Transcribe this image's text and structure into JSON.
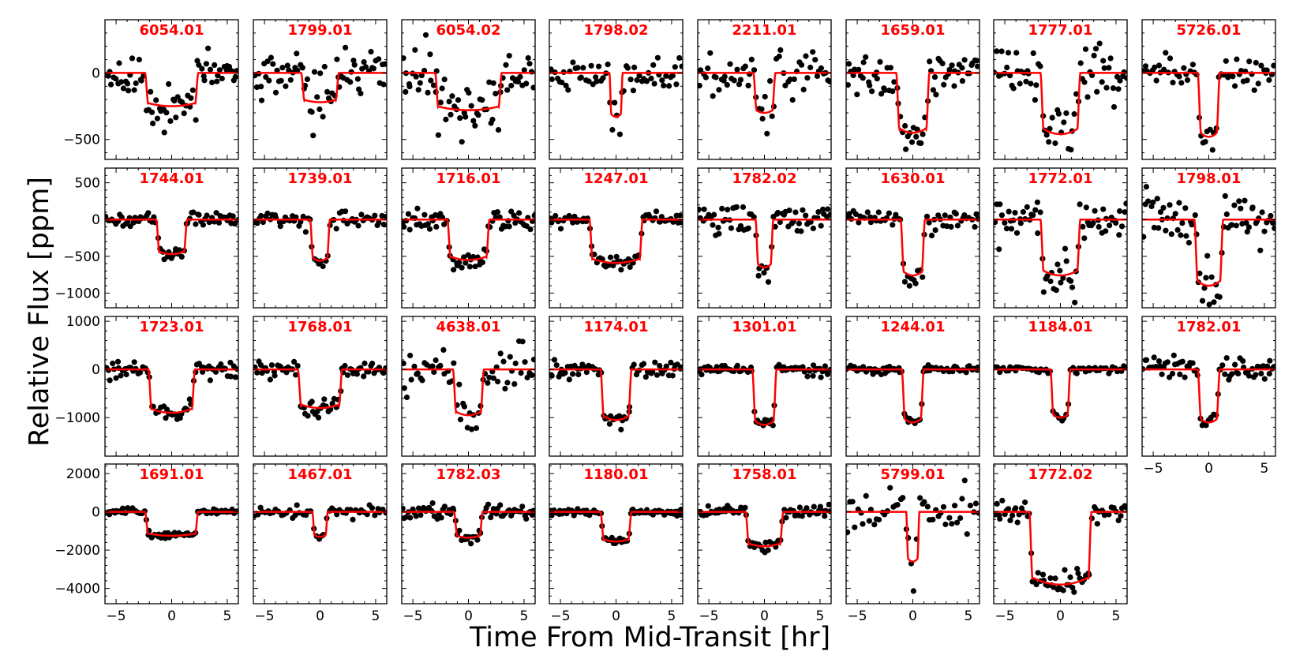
{
  "figure": {
    "xlabel": "Time From Mid-Transit [hr]",
    "ylabel": "Relative Flux [ppm]"
  },
  "chart_data": {
    "type": "scatter",
    "subtype": "transit light curve grid",
    "xlabel": "Time From Mid-Transit [hr]",
    "ylabel": "Relative Flux [ppm]",
    "xlim": [
      -6,
      6
    ],
    "xticks": [
      -5,
      0,
      5
    ],
    "marker_color": "#000000",
    "model_color": "#ff0000",
    "title_color": "#ff0000",
    "rows": [
      {
        "ylim": [
          -650,
          400
        ],
        "yticks": [
          0,
          -500
        ]
      },
      {
        "ylim": [
          -1200,
          700
        ],
        "yticks": [
          500,
          0,
          -500,
          -1000
        ]
      },
      {
        "ylim": [
          -1800,
          1100
        ],
        "yticks": [
          1000,
          0,
          -1000
        ]
      },
      {
        "ylim": [
          -4800,
          2500
        ],
        "yticks": [
          2000,
          0,
          -2000,
          -4000
        ]
      }
    ],
    "panels": [
      {
        "name": "6054.01",
        "row": 0,
        "col": 0,
        "depth": 250,
        "duration": 4.8,
        "scatter": 80,
        "n": 70
      },
      {
        "name": "1799.01",
        "row": 0,
        "col": 1,
        "depth": 220,
        "duration": 3.4,
        "scatter": 110,
        "n": 70
      },
      {
        "name": "6054.02",
        "row": 0,
        "col": 2,
        "depth": 280,
        "duration": 6.0,
        "scatter": 110,
        "n": 70
      },
      {
        "name": "1798.02",
        "row": 0,
        "col": 3,
        "depth": 330,
        "duration": 1.2,
        "scatter": 70,
        "n": 60
      },
      {
        "name": "2211.01",
        "row": 0,
        "col": 4,
        "depth": 300,
        "duration": 2.0,
        "scatter": 80,
        "n": 60
      },
      {
        "name": "1659.01",
        "row": 0,
        "col": 5,
        "depth": 450,
        "duration": 3.0,
        "scatter": 70,
        "n": 70
      },
      {
        "name": "1777.01",
        "row": 0,
        "col": 6,
        "depth": 460,
        "duration": 3.6,
        "scatter": 120,
        "n": 70
      },
      {
        "name": "5726.01",
        "row": 0,
        "col": 7,
        "depth": 480,
        "duration": 2.0,
        "scatter": 60,
        "n": 60
      },
      {
        "name": "1744.01",
        "row": 1,
        "col": 0,
        "depth": 470,
        "duration": 2.8,
        "scatter": 50,
        "n": 70
      },
      {
        "name": "1739.01",
        "row": 1,
        "col": 1,
        "depth": 560,
        "duration": 1.8,
        "scatter": 50,
        "n": 60
      },
      {
        "name": "1716.01",
        "row": 1,
        "col": 2,
        "depth": 550,
        "duration": 3.8,
        "scatter": 70,
        "n": 70
      },
      {
        "name": "1247.01",
        "row": 1,
        "col": 3,
        "depth": 590,
        "duration": 4.8,
        "scatter": 40,
        "n": 75
      },
      {
        "name": "1782.02",
        "row": 1,
        "col": 4,
        "depth": 650,
        "duration": 1.6,
        "scatter": 100,
        "n": 70
      },
      {
        "name": "1630.01",
        "row": 1,
        "col": 5,
        "depth": 760,
        "duration": 2.2,
        "scatter": 80,
        "n": 60
      },
      {
        "name": "1772.01",
        "row": 1,
        "col": 6,
        "depth": 760,
        "duration": 3.6,
        "scatter": 140,
        "n": 70
      },
      {
        "name": "1798.01",
        "row": 1,
        "col": 7,
        "depth": 900,
        "duration": 2.6,
        "scatter": 170,
        "n": 70
      },
      {
        "name": "1723.01",
        "row": 2,
        "col": 0,
        "depth": 900,
        "duration": 4.2,
        "scatter": 90,
        "n": 70
      },
      {
        "name": "1768.01",
        "row": 2,
        "col": 1,
        "depth": 800,
        "duration": 4.0,
        "scatter": 70,
        "n": 70
      },
      {
        "name": "4638.01",
        "row": 2,
        "col": 2,
        "depth": 950,
        "duration": 2.8,
        "scatter": 250,
        "n": 60
      },
      {
        "name": "1174.01",
        "row": 2,
        "col": 3,
        "depth": 1050,
        "duration": 2.8,
        "scatter": 90,
        "n": 70
      },
      {
        "name": "1301.01",
        "row": 2,
        "col": 4,
        "depth": 1150,
        "duration": 2.2,
        "scatter": 50,
        "n": 75
      },
      {
        "name": "1244.01",
        "row": 2,
        "col": 5,
        "depth": 1100,
        "duration": 2.0,
        "scatter": 40,
        "n": 75
      },
      {
        "name": "1184.01",
        "row": 2,
        "col": 6,
        "depth": 1000,
        "duration": 1.8,
        "scatter": 30,
        "n": 60
      },
      {
        "name": "1782.01",
        "row": 2,
        "col": 7,
        "depth": 1100,
        "duration": 2.0,
        "scatter": 110,
        "n": 70
      },
      {
        "name": "1691.01",
        "row": 3,
        "col": 0,
        "depth": 1250,
        "duration": 4.8,
        "scatter": 80,
        "n": 80
      },
      {
        "name": "1467.01",
        "row": 3,
        "col": 1,
        "depth": 1300,
        "duration": 1.4,
        "scatter": 150,
        "n": 50
      },
      {
        "name": "1782.03",
        "row": 3,
        "col": 2,
        "depth": 1350,
        "duration": 2.6,
        "scatter": 200,
        "n": 70
      },
      {
        "name": "1180.01",
        "row": 3,
        "col": 3,
        "depth": 1550,
        "duration": 2.8,
        "scatter": 70,
        "n": 80
      },
      {
        "name": "1758.01",
        "row": 3,
        "col": 4,
        "depth": 1800,
        "duration": 3.4,
        "scatter": 150,
        "n": 75
      },
      {
        "name": "5799.01",
        "row": 3,
        "col": 5,
        "depth": 2600,
        "duration": 1.2,
        "scatter": 600,
        "n": 50
      },
      {
        "name": "1772.02",
        "row": 3,
        "col": 6,
        "depth": 3800,
        "duration": 5.6,
        "scatter": 250,
        "n": 70
      }
    ]
  }
}
